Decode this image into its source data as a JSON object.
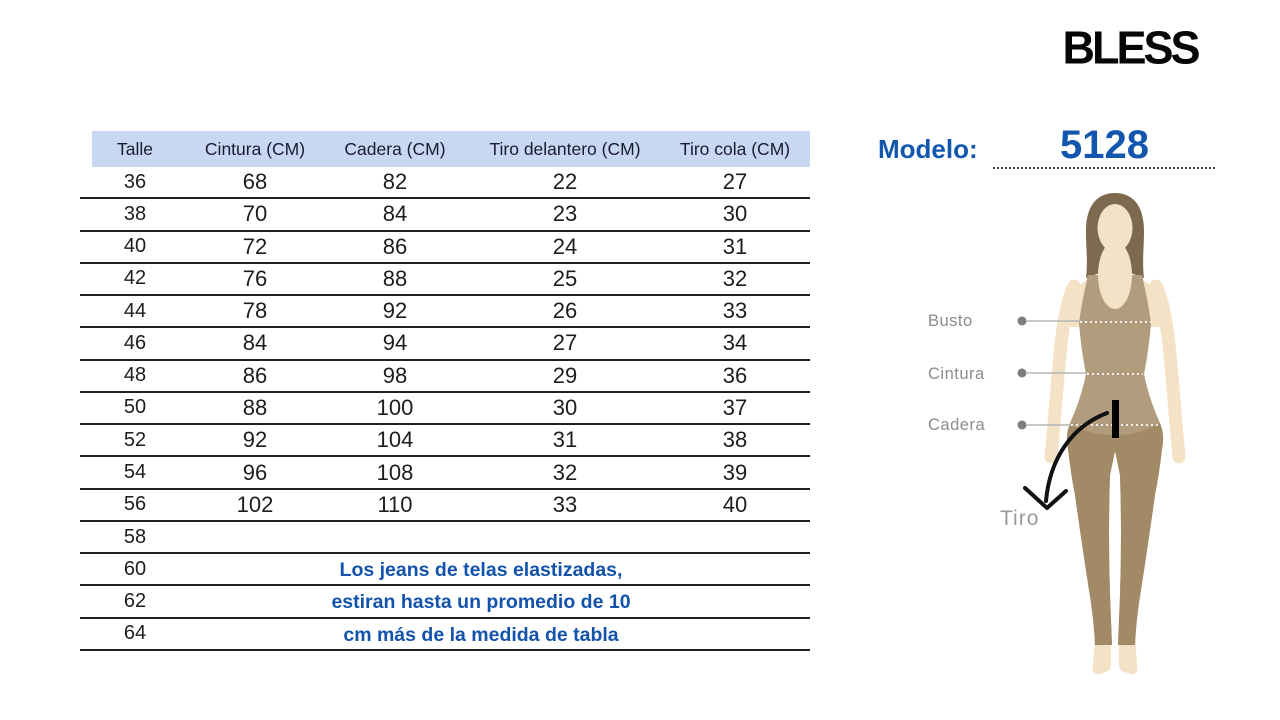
{
  "brand": {
    "logo_text": "BLESS"
  },
  "model": {
    "label": "Modelo:",
    "number": "5128"
  },
  "table": {
    "headers": [
      "Talle",
      "Cintura (CM)",
      "Cadera (CM)",
      "Tiro delantero (CM)",
      "Tiro cola (CM)"
    ],
    "rows": [
      [
        "36",
        "68",
        "82",
        "22",
        "27"
      ],
      [
        "38",
        "70",
        "84",
        "23",
        "30"
      ],
      [
        "40",
        "72",
        "86",
        "24",
        "31"
      ],
      [
        "42",
        "76",
        "88",
        "25",
        "32"
      ],
      [
        "44",
        "78",
        "92",
        "26",
        "33"
      ],
      [
        "46",
        "84",
        "94",
        "27",
        "34"
      ],
      [
        "48",
        "86",
        "98",
        "29",
        "36"
      ],
      [
        "50",
        "88",
        "100",
        "30",
        "37"
      ],
      [
        "52",
        "92",
        "104",
        "31",
        "38"
      ],
      [
        "54",
        "96",
        "108",
        "32",
        "39"
      ],
      [
        "56",
        "102",
        "110",
        "33",
        "40"
      ],
      [
        "58",
        "",
        "",
        "",
        ""
      ],
      [
        "60",
        "",
        "",
        "",
        ""
      ],
      [
        "62",
        "",
        "",
        "",
        ""
      ],
      [
        "64",
        "",
        "",
        "",
        ""
      ]
    ],
    "note_lines": [
      "Los jeans de telas elastizadas,",
      "estiran hasta un promedio de 10",
      "cm más de la medida de tabla"
    ]
  },
  "figure": {
    "labels": {
      "busto": "Busto",
      "cintura": "Cintura",
      "cadera": "Cadera",
      "tiro": "Tiro"
    }
  },
  "colors": {
    "header_bg": "#c9d8f2",
    "note_blue": "#1353ab",
    "model_blue": "#1257ad",
    "brand_black": "#060606",
    "label_gray": "#8c8c8c",
    "skin": "#f3e2c6",
    "hair": "#7d6a4e",
    "garment_top": "#b29c7e",
    "garment_legs": "#a28a66"
  }
}
